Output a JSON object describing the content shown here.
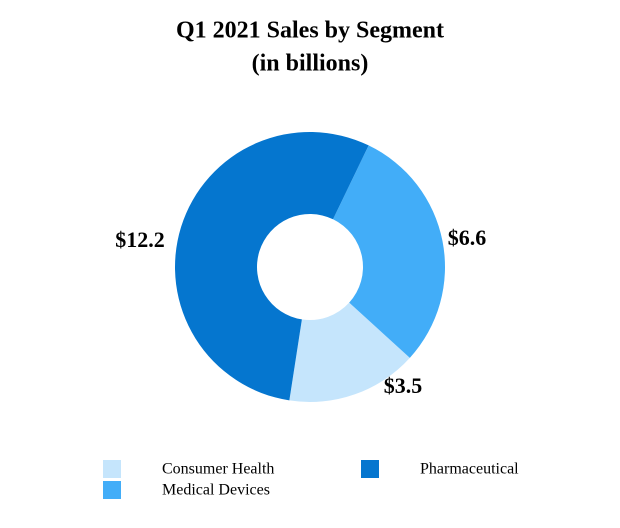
{
  "chart_data": {
    "type": "donut",
    "title": "Q1 2021 Sales by Segment",
    "subtitle": "(in billions)",
    "categories": [
      "Consumer Health",
      "Medical Devices",
      "Pharmaceutical"
    ],
    "values": [
      3.5,
      6.6,
      12.2
    ],
    "value_labels": [
      "$3.5",
      "$6.6",
      "$12.2"
    ],
    "colors": [
      "#c5e5fc",
      "#42adf8",
      "#0576cf"
    ]
  }
}
